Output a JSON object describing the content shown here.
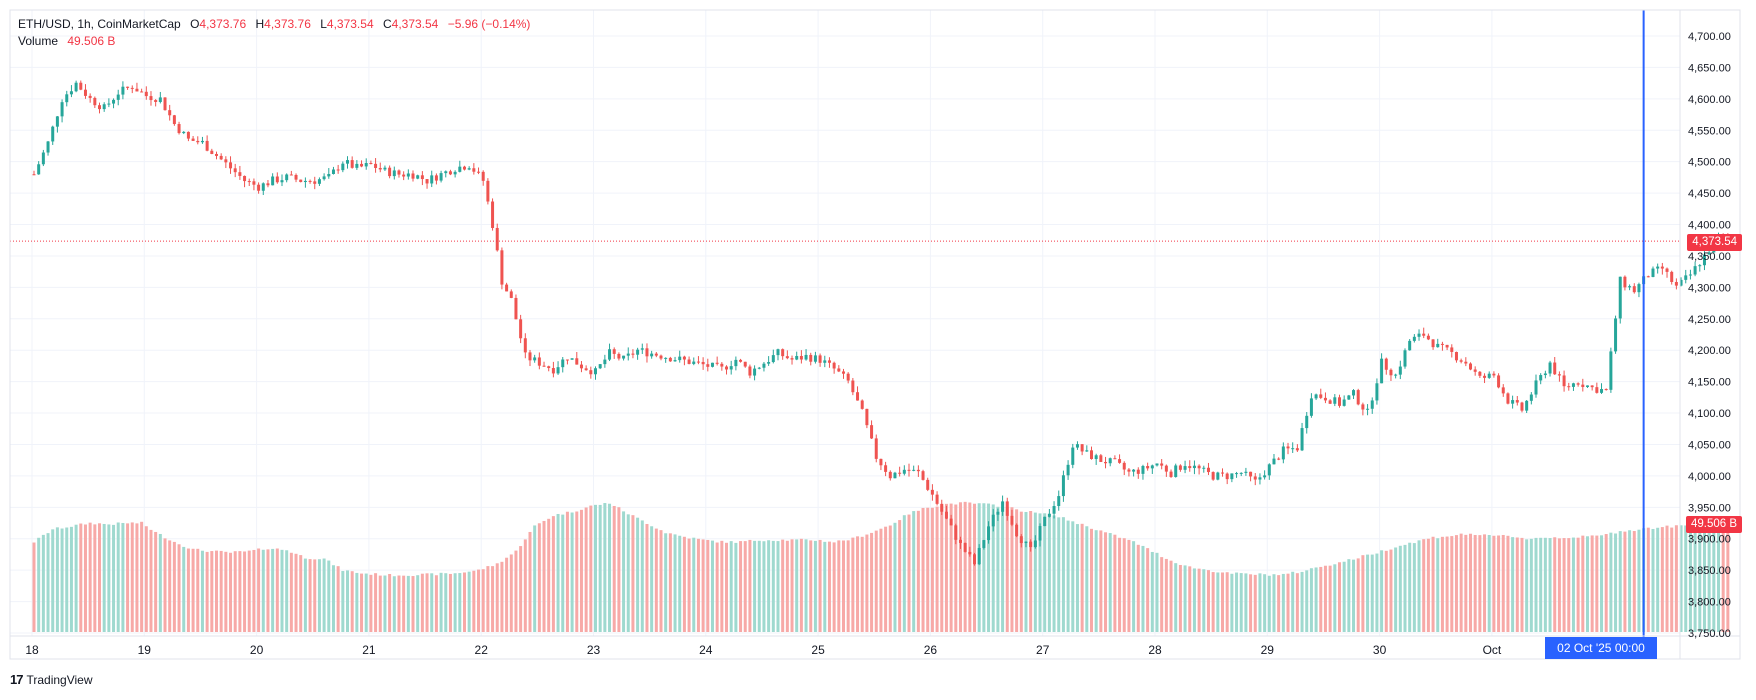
{
  "legend": {
    "symbol": "ETH/USD, 1h, CoinMarketCap",
    "o_label": "O",
    "o_value": "4,373.76",
    "h_label": "H",
    "h_value": "4,373.76",
    "l_label": "L",
    "l_value": "4,373.54",
    "c_label": "C",
    "c_value": "4,373.54",
    "change": "−5.96 (−0.14%)",
    "volume_label": "Volume",
    "volume_value": "49.506 B"
  },
  "tags": {
    "last_price": "4,373.54",
    "last_volume": "49.506 B",
    "crosshair_date": "02 Oct '25   00:00"
  },
  "branding": {
    "logo_mark": "17",
    "name": "TradingView"
  },
  "colors": {
    "up": "#26a69a",
    "down": "#ef5350",
    "up_vol": "#9fd9cf",
    "down_vol": "#f7a9a7",
    "grid": "#f0f3fa",
    "crosshair": "#2962ff",
    "price_line": "#f23645"
  },
  "chart_data": {
    "type": "candlestick",
    "title": "ETH/USD, 1h, CoinMarketCap",
    "x_tick_labels": [
      "18",
      "19",
      "20",
      "21",
      "22",
      "23",
      "24",
      "25",
      "26",
      "27",
      "28",
      "29",
      "30",
      "Oct"
    ],
    "y_tick_labels": [
      "4,700.00",
      "4,650.00",
      "4,600.00",
      "4,550.00",
      "4,500.00",
      "4,450.00",
      "4,400.00",
      "4,350.00",
      "4,300.00",
      "4,250.00",
      "4,200.00",
      "4,150.00",
      "4,100.00",
      "4,050.00",
      "4,000.00",
      "3,950.00",
      "3,900.00",
      "3,850.00",
      "3,800.00",
      "3,750.00"
    ],
    "ylim": [
      3750,
      4710
    ],
    "days_hours": 24,
    "x_start_hour_offset": -0.9,
    "close_path": [
      [
        0,
        4480
      ],
      [
        3,
        4530
      ],
      [
        6,
        4600
      ],
      [
        9,
        4625
      ],
      [
        12,
        4600
      ],
      [
        15,
        4585
      ],
      [
        18,
        4610
      ],
      [
        21,
        4620
      ],
      [
        24,
        4605
      ],
      [
        27,
        4600
      ],
      [
        30,
        4560
      ],
      [
        33,
        4535
      ],
      [
        36,
        4530
      ],
      [
        39,
        4510
      ],
      [
        42,
        4490
      ],
      [
        45,
        4470
      ],
      [
        48,
        4460
      ],
      [
        51,
        4470
      ],
      [
        54,
        4475
      ],
      [
        57,
        4470
      ],
      [
        60,
        4470
      ],
      [
        63,
        4475
      ],
      [
        66,
        4500
      ],
      [
        69,
        4490
      ],
      [
        72,
        4495
      ],
      [
        75,
        4485
      ],
      [
        78,
        4480
      ],
      [
        81,
        4480
      ],
      [
        84,
        4470
      ],
      [
        87,
        4480
      ],
      [
        90,
        4490
      ],
      [
        93,
        4495
      ],
      [
        96,
        4470
      ],
      [
        98,
        4400
      ],
      [
        100,
        4310
      ],
      [
        102,
        4280
      ],
      [
        105,
        4190
      ],
      [
        108,
        4180
      ],
      [
        111,
        4170
      ],
      [
        114,
        4190
      ],
      [
        117,
        4175
      ],
      [
        120,
        4165
      ],
      [
        123,
        4195
      ],
      [
        126,
        4185
      ],
      [
        129,
        4200
      ],
      [
        132,
        4195
      ],
      [
        135,
        4190
      ],
      [
        138,
        4185
      ],
      [
        141,
        4180
      ],
      [
        144,
        4175
      ],
      [
        147,
        4170
      ],
      [
        150,
        4185
      ],
      [
        153,
        4165
      ],
      [
        156,
        4180
      ],
      [
        159,
        4195
      ],
      [
        162,
        4185
      ],
      [
        165,
        4190
      ],
      [
        168,
        4185
      ],
      [
        171,
        4170
      ],
      [
        174,
        4150
      ],
      [
        177,
        4100
      ],
      [
        180,
        4030
      ],
      [
        183,
        4000
      ],
      [
        186,
        4010
      ],
      [
        189,
        4005
      ],
      [
        192,
        3970
      ],
      [
        195,
        3930
      ],
      [
        198,
        3890
      ],
      [
        201,
        3860
      ],
      [
        204,
        3920
      ],
      [
        207,
        3960
      ],
      [
        210,
        3910
      ],
      [
        213,
        3880
      ],
      [
        216,
        3930
      ],
      [
        219,
        3970
      ],
      [
        222,
        4050
      ],
      [
        225,
        4035
      ],
      [
        228,
        4025
      ],
      [
        231,
        4020
      ],
      [
        234,
        4005
      ],
      [
        237,
        4010
      ],
      [
        240,
        4020
      ],
      [
        243,
        4005
      ],
      [
        246,
        4020
      ],
      [
        249,
        4010
      ],
      [
        252,
        4000
      ],
      [
        255,
        4000
      ],
      [
        258,
        4005
      ],
      [
        261,
        3990
      ],
      [
        264,
        4015
      ],
      [
        267,
        4040
      ],
      [
        270,
        4045
      ],
      [
        273,
        4130
      ],
      [
        276,
        4125
      ],
      [
        279,
        4115
      ],
      [
        282,
        4130
      ],
      [
        285,
        4100
      ],
      [
        288,
        4180
      ],
      [
        291,
        4160
      ],
      [
        294,
        4215
      ],
      [
        297,
        4225
      ],
      [
        300,
        4205
      ],
      [
        303,
        4195
      ],
      [
        306,
        4180
      ],
      [
        309,
        4155
      ],
      [
        312,
        4160
      ],
      [
        315,
        4120
      ],
      [
        318,
        4105
      ],
      [
        321,
        4145
      ],
      [
        324,
        4180
      ],
      [
        327,
        4140
      ],
      [
        330,
        4150
      ],
      [
        333,
        4140
      ],
      [
        336,
        4135
      ],
      [
        339,
        4310
      ],
      [
        342,
        4295
      ],
      [
        345,
        4320
      ],
      [
        348,
        4330
      ],
      [
        351,
        4300
      ],
      [
        354,
        4320
      ],
      [
        357,
        4350
      ],
      [
        360,
        4380
      ],
      [
        362,
        4373.54
      ]
    ],
    "volume_path": [
      [
        0,
        3895
      ],
      [
        4,
        3915
      ],
      [
        8,
        3920
      ],
      [
        12,
        3925
      ],
      [
        16,
        3923
      ],
      [
        20,
        3925
      ],
      [
        23,
        3925
      ],
      [
        26,
        3910
      ],
      [
        30,
        3895
      ],
      [
        34,
        3883
      ],
      [
        38,
        3880
      ],
      [
        42,
        3878
      ],
      [
        46,
        3880
      ],
      [
        50,
        3885
      ],
      [
        54,
        3882
      ],
      [
        58,
        3870
      ],
      [
        62,
        3868
      ],
      [
        66,
        3850
      ],
      [
        70,
        3845
      ],
      [
        76,
        3842
      ],
      [
        84,
        3843
      ],
      [
        90,
        3845
      ],
      [
        95,
        3850
      ],
      [
        99,
        3860
      ],
      [
        103,
        3880
      ],
      [
        107,
        3920
      ],
      [
        111,
        3937
      ],
      [
        115,
        3943
      ],
      [
        119,
        3952
      ],
      [
        123,
        3957
      ],
      [
        127,
        3940
      ],
      [
        131,
        3925
      ],
      [
        135,
        3910
      ],
      [
        139,
        3903
      ],
      [
        143,
        3898
      ],
      [
        147,
        3895
      ],
      [
        151,
        3895
      ],
      [
        155,
        3898
      ],
      [
        159,
        3898
      ],
      [
        163,
        3898
      ],
      [
        167,
        3898
      ],
      [
        171,
        3895
      ],
      [
        175,
        3900
      ],
      [
        179,
        3910
      ],
      [
        183,
        3922
      ],
      [
        187,
        3940
      ],
      [
        191,
        3950
      ],
      [
        195,
        3955
      ],
      [
        199,
        3957
      ],
      [
        203,
        3955
      ],
      [
        207,
        3952
      ],
      [
        211,
        3945
      ],
      [
        215,
        3940
      ],
      [
        219,
        3935
      ],
      [
        223,
        3925
      ],
      [
        227,
        3915
      ],
      [
        231,
        3905
      ],
      [
        235,
        3895
      ],
      [
        239,
        3880
      ],
      [
        243,
        3865
      ],
      [
        247,
        3855
      ],
      [
        251,
        3850
      ],
      [
        255,
        3845
      ],
      [
        259,
        3844
      ],
      [
        263,
        3843
      ],
      [
        267,
        3843
      ],
      [
        271,
        3848
      ],
      [
        275,
        3856
      ],
      [
        279,
        3862
      ],
      [
        283,
        3870
      ],
      [
        287,
        3878
      ],
      [
        291,
        3887
      ],
      [
        295,
        3895
      ],
      [
        299,
        3902
      ],
      [
        303,
        3905
      ],
      [
        307,
        3908
      ],
      [
        311,
        3904
      ],
      [
        315,
        3905
      ],
      [
        319,
        3900
      ],
      [
        323,
        3902
      ],
      [
        327,
        3902
      ],
      [
        331,
        3903
      ],
      [
        335,
        3905
      ],
      [
        339,
        3912
      ],
      [
        343,
        3915
      ],
      [
        347,
        3918
      ],
      [
        351,
        3920
      ],
      [
        355,
        3922
      ],
      [
        359,
        3924
      ],
      [
        362,
        3926
      ]
    ],
    "last_price": 4373.54,
    "last_volume_billion": 49.506,
    "crosshair_hour": 344
  }
}
